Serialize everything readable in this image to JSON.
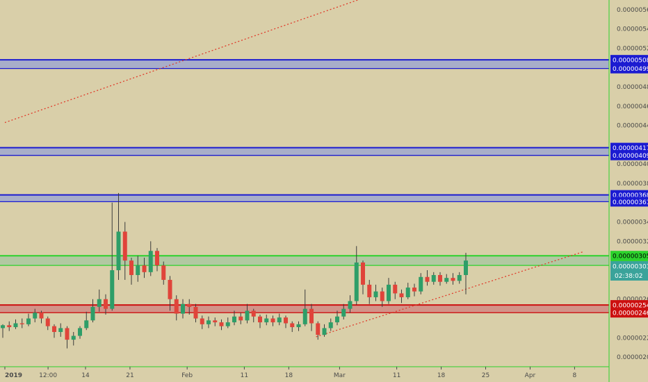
{
  "chart_data": {
    "type": "candlestick",
    "symbol_context": "price chart with support/resistance zones",
    "colors": {
      "background": "#d9cfa9",
      "up": "#2e9e68",
      "down": "#e0443a",
      "wick": "#3b3b3b",
      "zone_blue_fill": "#9fa8cf",
      "zone_blue_line": "#1b1bd1",
      "zone_green_fill": "#aac7a1",
      "zone_green_line": "#2cd22c",
      "zone_red_fill": "#d08a84",
      "zone_red_line": "#cc1010",
      "trendline": "#e03a2a",
      "axis_text": "#4a4a4a"
    },
    "y_axis": {
      "min": 1.9e-06,
      "max": 5.7e-06,
      "ticks": [
        "0.00000560",
        "0.00000540",
        "0.00000520",
        "0.00000480",
        "0.00000460",
        "0.00000440",
        "0.00000400",
        "0.00000380",
        "0.00000340",
        "0.00000320",
        "0.00000260",
        "0.00000220",
        "0.00000200"
      ],
      "tick_values": [
        5.6e-06,
        5.4e-06,
        5.2e-06,
        4.8e-06,
        4.6e-06,
        4.4e-06,
        4e-06,
        3.8e-06,
        3.4e-06,
        3.2e-06,
        2.6e-06,
        2.2e-06,
        2e-06
      ]
    },
    "x_axis": {
      "min": 0,
      "max": 89,
      "ticks": [
        {
          "label": "2019",
          "x": 0
        },
        {
          "label": "12:00",
          "x": 6.8
        },
        {
          "label": "14",
          "x": 12.7
        },
        {
          "label": "21",
          "x": 19.7
        },
        {
          "label": "Feb",
          "x": 28.7
        },
        {
          "label": "11",
          "x": 37.7
        },
        {
          "label": "18",
          "x": 44.7
        },
        {
          "label": "Mar",
          "x": 52.7
        },
        {
          "label": "11",
          "x": 61.7
        },
        {
          "label": "18",
          "x": 68.7
        },
        {
          "label": "25",
          "x": 75.7
        },
        {
          "label": "Apr",
          "x": 82.7
        },
        {
          "label": "8",
          "x": 89.7
        }
      ]
    },
    "zones": [
      {
        "color": "blue",
        "top": 5.08e-06,
        "bottom": 4.99e-06,
        "top_label": "0.00000508",
        "bottom_label": "0.00000499"
      },
      {
        "color": "blue",
        "top": 4.17e-06,
        "bottom": 4.09e-06,
        "top_label": "0.00000417",
        "bottom_label": "0.00000409"
      },
      {
        "color": "blue",
        "top": 3.68e-06,
        "bottom": 3.61e-06,
        "top_label": "0.00000368",
        "bottom_label": "0.00000361"
      },
      {
        "color": "green",
        "top": 3.05e-06,
        "bottom": 2.95e-06,
        "top_label": "0.00000305",
        "bottom_label": "0.00000295"
      },
      {
        "color": "red",
        "top": 2.54e-06,
        "bottom": 2.46e-06,
        "top_label": "0.00000254",
        "bottom_label": "0.00000246"
      }
    ],
    "current_price": {
      "value": 3.03e-06,
      "label": "0.00000303",
      "countdown": "02:38:02"
    },
    "trendlines": [
      {
        "x1": 0,
        "y1": 4.43e-06,
        "x2": 56,
        "y2": 5.71e-06
      },
      {
        "x1": 49,
        "y1": 2.21e-06,
        "x2": 91,
        "y2": 3.09e-06
      }
    ],
    "series": [
      {
        "o": 2.3e-06,
        "c": 2.33e-06,
        "h": 2.34e-06,
        "l": 2.2e-06
      },
      {
        "o": 2.33e-06,
        "c": 2.31e-06,
        "h": 2.37e-06,
        "l": 2.27e-06
      },
      {
        "o": 2.31e-06,
        "c": 2.35e-06,
        "h": 2.39e-06,
        "l": 2.29e-06
      },
      {
        "o": 2.35e-06,
        "c": 2.34e-06,
        "h": 2.4e-06,
        "l": 2.3e-06
      },
      {
        "o": 2.34e-06,
        "c": 2.4e-06,
        "h": 2.45e-06,
        "l": 2.32e-06
      },
      {
        "o": 2.4e-06,
        "c": 2.46e-06,
        "h": 2.5e-06,
        "l": 2.36e-06
      },
      {
        "o": 2.46e-06,
        "c": 2.4e-06,
        "h": 2.48e-06,
        "l": 2.35e-06
      },
      {
        "o": 2.4e-06,
        "c": 2.32e-06,
        "h": 2.42e-06,
        "l": 2.28e-06
      },
      {
        "o": 2.32e-06,
        "c": 2.26e-06,
        "h": 2.34e-06,
        "l": 2.2e-06
      },
      {
        "o": 2.26e-06,
        "c": 2.3e-06,
        "h": 2.35e-06,
        "l": 2.21e-06
      },
      {
        "o": 2.3e-06,
        "c": 2.18e-06,
        "h": 2.32e-06,
        "l": 2.09e-06
      },
      {
        "o": 2.18e-06,
        "c": 2.22e-06,
        "h": 2.26e-06,
        "l": 2.12e-06
      },
      {
        "o": 2.22e-06,
        "c": 2.3e-06,
        "h": 2.32e-06,
        "l": 2.19e-06
      },
      {
        "o": 2.3e-06,
        "c": 2.38e-06,
        "h": 2.47e-06,
        "l": 2.28e-06
      },
      {
        "o": 2.38e-06,
        "c": 2.52e-06,
        "h": 2.6e-06,
        "l": 2.36e-06
      },
      {
        "o": 2.52e-06,
        "c": 2.6e-06,
        "h": 2.7e-06,
        "l": 2.47e-06
      },
      {
        "o": 2.6e-06,
        "c": 2.5e-06,
        "h": 2.65e-06,
        "l": 2.44e-06
      },
      {
        "o": 2.5e-06,
        "c": 2.9e-06,
        "h": 3.6e-06,
        "l": 2.48e-06
      },
      {
        "o": 2.9e-06,
        "c": 3.3e-06,
        "h": 3.7e-06,
        "l": 2.8e-06
      },
      {
        "o": 3.3e-06,
        "c": 3e-06,
        "h": 3.4e-06,
        "l": 2.8e-06
      },
      {
        "o": 3e-06,
        "c": 2.85e-06,
        "h": 3.03e-06,
        "l": 2.75e-06
      },
      {
        "o": 2.85e-06,
        "c": 2.95e-06,
        "h": 3.05e-06,
        "l": 2.78e-06
      },
      {
        "o": 2.95e-06,
        "c": 2.88e-06,
        "h": 3.03e-06,
        "l": 2.82e-06
      },
      {
        "o": 2.88e-06,
        "c": 3.1e-06,
        "h": 3.2e-06,
        "l": 2.84e-06
      },
      {
        "o": 3.1e-06,
        "c": 2.95e-06,
        "h": 3.13e-06,
        "l": 2.89e-06
      },
      {
        "o": 2.95e-06,
        "c": 2.8e-06,
        "h": 2.99e-06,
        "l": 2.75e-06
      },
      {
        "o": 2.8e-06,
        "c": 2.6e-06,
        "h": 2.84e-06,
        "l": 2.48e-06
      },
      {
        "o": 2.6e-06,
        "c": 2.45e-06,
        "h": 2.64e-06,
        "l": 2.38e-06
      },
      {
        "o": 2.45e-06,
        "c": 2.55e-06,
        "h": 2.6e-06,
        "l": 2.4e-06
      },
      {
        "o": 2.55e-06,
        "c": 2.52e-06,
        "h": 2.6e-06,
        "l": 2.44e-06
      },
      {
        "o": 2.52e-06,
        "c": 2.4e-06,
        "h": 2.55e-06,
        "l": 2.36e-06
      },
      {
        "o": 2.4e-06,
        "c": 2.34e-06,
        "h": 2.43e-06,
        "l": 2.29e-06
      },
      {
        "o": 2.34e-06,
        "c": 2.38e-06,
        "h": 2.42e-06,
        "l": 2.3e-06
      },
      {
        "o": 2.38e-06,
        "c": 2.36e-06,
        "h": 2.41e-06,
        "l": 2.32e-06
      },
      {
        "o": 2.36e-06,
        "c": 2.32e-06,
        "h": 2.39e-06,
        "l": 2.28e-06
      },
      {
        "o": 2.32e-06,
        "c": 2.36e-06,
        "h": 2.41e-06,
        "l": 2.3e-06
      },
      {
        "o": 2.36e-06,
        "c": 2.42e-06,
        "h": 2.48e-06,
        "l": 2.33e-06
      },
      {
        "o": 2.42e-06,
        "c": 2.38e-06,
        "h": 2.46e-06,
        "l": 2.34e-06
      },
      {
        "o": 2.38e-06,
        "c": 2.48e-06,
        "h": 2.55e-06,
        "l": 2.35e-06
      },
      {
        "o": 2.48e-06,
        "c": 2.42e-06,
        "h": 2.5e-06,
        "l": 2.36e-06
      },
      {
        "o": 2.42e-06,
        "c": 2.36e-06,
        "h": 2.44e-06,
        "l": 2.3e-06
      },
      {
        "o": 2.36e-06,
        "c": 2.4e-06,
        "h": 2.44e-06,
        "l": 2.33e-06
      },
      {
        "o": 2.4e-06,
        "c": 2.36e-06,
        "h": 2.43e-06,
        "l": 2.32e-06
      },
      {
        "o": 2.36e-06,
        "c": 2.41e-06,
        "h": 2.45e-06,
        "l": 2.33e-06
      },
      {
        "o": 2.41e-06,
        "c": 2.35e-06,
        "h": 2.43e-06,
        "l": 2.3e-06
      },
      {
        "o": 2.35e-06,
        "c": 2.31e-06,
        "h": 2.37e-06,
        "l": 2.26e-06
      },
      {
        "o": 2.31e-06,
        "c": 2.34e-06,
        "h": 2.37e-06,
        "l": 2.27e-06
      },
      {
        "o": 2.34e-06,
        "c": 2.5e-06,
        "h": 2.7e-06,
        "l": 2.32e-06
      },
      {
        "o": 2.5e-06,
        "c": 2.35e-06,
        "h": 2.55e-06,
        "l": 2.27e-06
      },
      {
        "o": 2.35e-06,
        "c": 2.23e-06,
        "h": 2.37e-06,
        "l": 2.18e-06
      },
      {
        "o": 2.23e-06,
        "c": 2.3e-06,
        "h": 2.34e-06,
        "l": 2.21e-06
      },
      {
        "o": 2.3e-06,
        "c": 2.36e-06,
        "h": 2.4e-06,
        "l": 2.27e-06
      },
      {
        "o": 2.36e-06,
        "c": 2.42e-06,
        "h": 2.48e-06,
        "l": 2.33e-06
      },
      {
        "o": 2.42e-06,
        "c": 2.5e-06,
        "h": 2.55e-06,
        "l": 2.39e-06
      },
      {
        "o": 2.5e-06,
        "c": 2.58e-06,
        "h": 2.64e-06,
        "l": 2.46e-06
      },
      {
        "o": 2.58e-06,
        "c": 2.98e-06,
        "h": 3.15e-06,
        "l": 2.54e-06
      },
      {
        "o": 2.98e-06,
        "c": 2.75e-06,
        "h": 3e-06,
        "l": 2.65e-06
      },
      {
        "o": 2.75e-06,
        "c": 2.62e-06,
        "h": 2.8e-06,
        "l": 2.55e-06
      },
      {
        "o": 2.62e-06,
        "c": 2.68e-06,
        "h": 2.75e-06,
        "l": 2.58e-06
      },
      {
        "o": 2.68e-06,
        "c": 2.58e-06,
        "h": 2.72e-06,
        "l": 2.52e-06
      },
      {
        "o": 2.58e-06,
        "c": 2.75e-06,
        "h": 2.82e-06,
        "l": 2.55e-06
      },
      {
        "o": 2.75e-06,
        "c": 2.66e-06,
        "h": 2.78e-06,
        "l": 2.6e-06
      },
      {
        "o": 2.66e-06,
        "c": 2.62e-06,
        "h": 2.7e-06,
        "l": 2.56e-06
      },
      {
        "o": 2.62e-06,
        "c": 2.72e-06,
        "h": 2.77e-06,
        "l": 2.6e-06
      },
      {
        "o": 2.72e-06,
        "c": 2.68e-06,
        "h": 2.76e-06,
        "l": 2.63e-06
      },
      {
        "o": 2.68e-06,
        "c": 2.83e-06,
        "h": 2.87e-06,
        "l": 2.65e-06
      },
      {
        "o": 2.83e-06,
        "c": 2.78e-06,
        "h": 2.9e-06,
        "l": 2.74e-06
      },
      {
        "o": 2.78e-06,
        "c": 2.85e-06,
        "h": 2.88e-06,
        "l": 2.75e-06
      },
      {
        "o": 2.85e-06,
        "c": 2.78e-06,
        "h": 2.88e-06,
        "l": 2.74e-06
      },
      {
        "o": 2.78e-06,
        "c": 2.82e-06,
        "h": 2.86e-06,
        "l": 2.76e-06
      },
      {
        "o": 2.82e-06,
        "c": 2.79e-06,
        "h": 2.87e-06,
        "l": 2.75e-06
      },
      {
        "o": 2.79e-06,
        "c": 2.85e-06,
        "h": 2.88e-06,
        "l": 2.76e-06
      },
      {
        "o": 2.85e-06,
        "c": 3e-06,
        "h": 3.08e-06,
        "l": 2.65e-06
      }
    ]
  }
}
